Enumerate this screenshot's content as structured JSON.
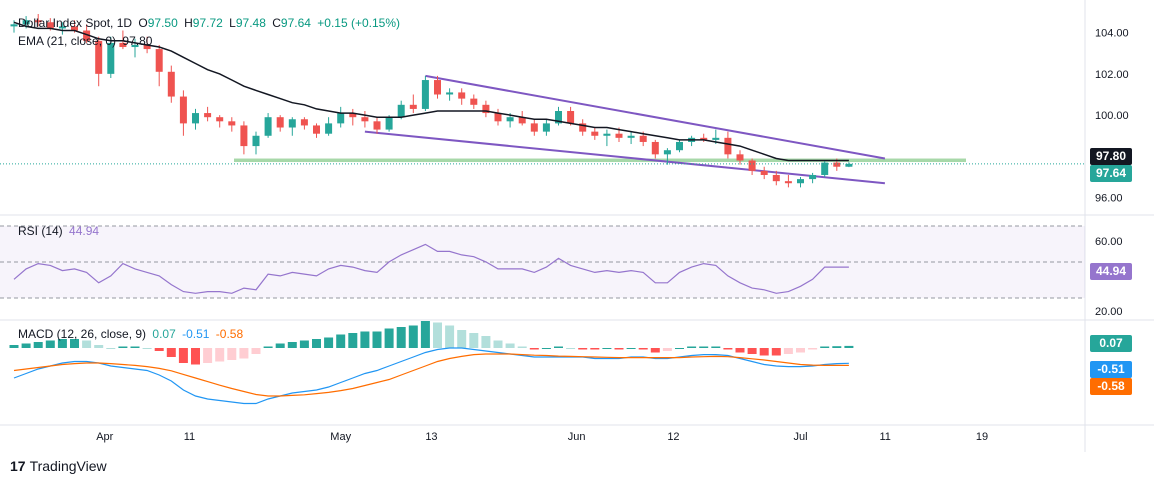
{
  "header": {
    "symbol": "Dollar Index Spot, 1D",
    "open_label": "O",
    "open": "97.50",
    "high_label": "H",
    "high": "97.72",
    "low_label": "L",
    "low": "97.48",
    "close_label": "C",
    "close": "97.64",
    "change": "+0.15 (+0.15%)"
  },
  "ema_legend": {
    "label": "EMA (21, close, 0)",
    "value": "97.80"
  },
  "rsi_legend": {
    "label": "RSI (14)",
    "value": "44.94"
  },
  "macd_legend": {
    "label": "MACD (12, 26, close, 9)",
    "hist": "0.07",
    "macd": "-0.51",
    "signal": "-0.58"
  },
  "badges": {
    "ema": "97.80",
    "price": "97.64",
    "rsi": "44.94",
    "macd_hist": "0.07",
    "macd_line": "-0.51",
    "macd_signal": "-0.58"
  },
  "colors": {
    "up": "#26a69a",
    "down": "#ef5350",
    "ema": "#131722",
    "channel": "#7e57c2",
    "support": "#81c784",
    "rsi": "#9575cd",
    "macd": "#2196f3",
    "signal": "#ff6d00",
    "hist_up_strong": "#26a69a",
    "hist_up_weak": "#b2dfdb",
    "hist_down_strong": "#ff5252",
    "hist_down_weak": "#ffcdd2"
  },
  "footer": {
    "brand": "TradingView"
  },
  "chart_data": {
    "type": "candlestick",
    "x_tick_labels": [
      "Apr",
      "11",
      "May",
      "13",
      "Jun",
      "12",
      "Jul",
      "11",
      "19"
    ],
    "price_axis": {
      "ticks": [
        "104.00",
        "102.00",
        "100.00",
        "96.00"
      ],
      "range": [
        95.5,
        104.9
      ]
    },
    "rsi_axis": {
      "ticks": [
        "60.00",
        "40.00",
        "20.00"
      ],
      "range": [
        17,
        72
      ],
      "bands": [
        30,
        50,
        70
      ]
    },
    "support_level": 97.8,
    "candles": [
      [
        104.3,
        104.6,
        104.0,
        104.4
      ],
      [
        104.4,
        104.8,
        104.2,
        104.6
      ],
      [
        104.6,
        104.9,
        104.3,
        104.5
      ],
      [
        104.5,
        104.7,
        104.1,
        104.2
      ],
      [
        104.2,
        104.5,
        103.9,
        104.3
      ],
      [
        104.3,
        104.6,
        104.0,
        104.1
      ],
      [
        104.1,
        104.4,
        103.5,
        103.6
      ],
      [
        103.6,
        103.8,
        101.4,
        102.0
      ],
      [
        102.0,
        103.8,
        101.8,
        103.5
      ],
      [
        103.5,
        104.1,
        103.2,
        103.3
      ],
      [
        103.3,
        103.7,
        102.8,
        103.4
      ],
      [
        103.4,
        103.8,
        103.0,
        103.2
      ],
      [
        103.2,
        103.4,
        101.4,
        102.1
      ],
      [
        102.1,
        102.4,
        100.6,
        100.9
      ],
      [
        100.9,
        101.2,
        99.0,
        99.6
      ],
      [
        99.6,
        100.3,
        99.3,
        100.1
      ],
      [
        100.1,
        100.4,
        99.7,
        99.9
      ],
      [
        99.9,
        100.0,
        99.4,
        99.7
      ],
      [
        99.7,
        99.9,
        99.2,
        99.5
      ],
      [
        99.5,
        99.7,
        98.1,
        98.5
      ],
      [
        98.5,
        99.2,
        98.1,
        99.0
      ],
      [
        99.0,
        100.1,
        98.9,
        99.9
      ],
      [
        99.9,
        100.0,
        99.2,
        99.4
      ],
      [
        99.4,
        99.9,
        99.0,
        99.8
      ],
      [
        99.8,
        99.9,
        99.3,
        99.5
      ],
      [
        99.5,
        99.6,
        98.9,
        99.1
      ],
      [
        99.1,
        99.9,
        99.0,
        99.6
      ],
      [
        99.6,
        100.4,
        99.4,
        100.1
      ],
      [
        100.1,
        100.3,
        99.5,
        99.9
      ],
      [
        99.9,
        100.2,
        99.4,
        99.7
      ],
      [
        99.7,
        99.9,
        99.1,
        99.3
      ],
      [
        99.3,
        100.0,
        99.2,
        99.9
      ],
      [
        99.9,
        100.7,
        99.8,
        100.5
      ],
      [
        100.5,
        101.0,
        100.1,
        100.3
      ],
      [
        100.3,
        101.9,
        100.2,
        101.7
      ],
      [
        101.7,
        101.9,
        100.8,
        101.0
      ],
      [
        101.0,
        101.3,
        100.7,
        101.1
      ],
      [
        101.1,
        101.3,
        100.5,
        100.8
      ],
      [
        100.8,
        101.0,
        100.3,
        100.5
      ],
      [
        100.5,
        100.7,
        99.9,
        100.1
      ],
      [
        100.1,
        100.3,
        99.5,
        99.7
      ],
      [
        99.7,
        100.1,
        99.4,
        99.9
      ],
      [
        99.9,
        100.2,
        99.5,
        99.6
      ],
      [
        99.6,
        99.8,
        99.0,
        99.2
      ],
      [
        99.2,
        99.8,
        99.0,
        99.6
      ],
      [
        99.6,
        100.4,
        99.5,
        100.2
      ],
      [
        100.2,
        100.4,
        99.5,
        99.6
      ],
      [
        99.6,
        99.8,
        99.0,
        99.2
      ],
      [
        99.2,
        99.4,
        98.8,
        99.0
      ],
      [
        99.0,
        99.3,
        98.5,
        99.1
      ],
      [
        99.1,
        99.4,
        98.7,
        98.9
      ],
      [
        98.9,
        99.2,
        98.6,
        99.0
      ],
      [
        99.0,
        99.2,
        98.5,
        98.7
      ],
      [
        98.7,
        98.8,
        97.9,
        98.1
      ],
      [
        98.1,
        98.4,
        97.6,
        98.3
      ],
      [
        98.3,
        98.8,
        98.2,
        98.7
      ],
      [
        98.7,
        99.0,
        98.5,
        98.9
      ],
      [
        98.9,
        99.1,
        98.7,
        98.8
      ],
      [
        98.8,
        99.3,
        98.6,
        98.9
      ],
      [
        98.9,
        99.2,
        97.9,
        98.1
      ],
      [
        98.1,
        98.3,
        97.6,
        97.8
      ],
      [
        97.8,
        97.9,
        97.1,
        97.3
      ],
      [
        97.3,
        97.5,
        96.9,
        97.1
      ],
      [
        97.1,
        97.3,
        96.6,
        96.8
      ],
      [
        96.8,
        97.1,
        96.5,
        96.7
      ],
      [
        96.7,
        97.0,
        96.5,
        96.9
      ],
      [
        96.9,
        97.2,
        96.7,
        97.1
      ],
      [
        97.1,
        97.8,
        97.0,
        97.7
      ],
      [
        97.7,
        97.9,
        97.3,
        97.5
      ],
      [
        97.5,
        97.72,
        97.48,
        97.64
      ]
    ],
    "ema21": [
      104.5,
      104.3,
      104.2,
      104.2,
      104.1,
      104.1,
      103.9,
      103.7,
      103.6,
      103.6,
      103.5,
      103.4,
      103.3,
      103.1,
      102.8,
      102.5,
      102.2,
      102.0,
      101.7,
      101.4,
      101.2,
      101.0,
      100.8,
      100.6,
      100.5,
      100.3,
      100.2,
      100.1,
      100.1,
      100.0,
      99.9,
      99.9,
      99.9,
      100.0,
      100.1,
      100.2,
      100.2,
      100.2,
      100.2,
      100.2,
      100.1,
      100.0,
      99.9,
      99.8,
      99.8,
      99.7,
      99.6,
      99.5,
      99.4,
      99.4,
      99.3,
      99.2,
      99.1,
      99.0,
      98.9,
      98.8,
      98.8,
      98.8,
      98.7,
      98.6,
      98.5,
      98.3,
      98.1,
      97.9,
      97.8,
      97.8,
      97.8,
      97.8,
      97.8,
      97.8
    ],
    "rsi": [
      38,
      44,
      47,
      46,
      43,
      44,
      42,
      36,
      40,
      47,
      44,
      42,
      40,
      35,
      31,
      30,
      31,
      31,
      30,
      33,
      32,
      41,
      40,
      42,
      41,
      40,
      44,
      46,
      45,
      43,
      42,
      48,
      52,
      55,
      58,
      54,
      54,
      52,
      51,
      48,
      44,
      44,
      44,
      42,
      45,
      50,
      46,
      44,
      42,
      43,
      42,
      43,
      42,
      36,
      36,
      42,
      45,
      47,
      46,
      40,
      36,
      33,
      32,
      30,
      31,
      34,
      38,
      45,
      45,
      45
    ],
    "macd_hist": [
      0.1,
      0.15,
      0.2,
      0.25,
      0.3,
      0.3,
      0.25,
      0.1,
      0.0,
      0.05,
      0.05,
      0.0,
      -0.1,
      -0.3,
      -0.5,
      -0.55,
      -0.5,
      -0.45,
      -0.4,
      -0.35,
      -0.2,
      0.05,
      0.15,
      0.2,
      0.25,
      0.3,
      0.35,
      0.45,
      0.5,
      0.55,
      0.55,
      0.65,
      0.7,
      0.75,
      0.9,
      0.85,
      0.75,
      0.6,
      0.5,
      0.4,
      0.25,
      0.15,
      0.05,
      -0.05,
      0.0,
      0.05,
      0.0,
      -0.05,
      -0.05,
      0.0,
      -0.05,
      0.0,
      -0.05,
      -0.15,
      -0.1,
      0.0,
      0.05,
      0.05,
      0.05,
      -0.05,
      -0.15,
      -0.2,
      -0.25,
      -0.25,
      -0.2,
      -0.15,
      -0.05,
      0.05,
      0.06,
      0.07
    ],
    "macd_line": [
      -1.0,
      -0.85,
      -0.7,
      -0.6,
      -0.5,
      -0.45,
      -0.45,
      -0.5,
      -0.6,
      -0.65,
      -0.7,
      -0.75,
      -0.9,
      -1.1,
      -1.4,
      -1.6,
      -1.7,
      -1.75,
      -1.8,
      -1.85,
      -1.85,
      -1.7,
      -1.6,
      -1.5,
      -1.45,
      -1.4,
      -1.3,
      -1.15,
      -1.0,
      -0.85,
      -0.75,
      -0.6,
      -0.45,
      -0.3,
      -0.15,
      -0.05,
      0.0,
      0.0,
      -0.05,
      -0.1,
      -0.15,
      -0.2,
      -0.25,
      -0.3,
      -0.3,
      -0.3,
      -0.3,
      -0.3,
      -0.35,
      -0.35,
      -0.35,
      -0.3,
      -0.3,
      -0.35,
      -0.35,
      -0.3,
      -0.25,
      -0.22,
      -0.22,
      -0.25,
      -0.35,
      -0.45,
      -0.55,
      -0.6,
      -0.62,
      -0.62,
      -0.6,
      -0.55,
      -0.52,
      -0.51
    ],
    "macd_signal": [
      -0.75,
      -0.7,
      -0.65,
      -0.6,
      -0.55,
      -0.52,
      -0.5,
      -0.5,
      -0.52,
      -0.55,
      -0.58,
      -0.62,
      -0.68,
      -0.76,
      -0.88,
      -1.0,
      -1.12,
      -1.24,
      -1.35,
      -1.45,
      -1.55,
      -1.6,
      -1.6,
      -1.58,
      -1.56,
      -1.52,
      -1.48,
      -1.42,
      -1.35,
      -1.25,
      -1.15,
      -1.05,
      -0.9,
      -0.75,
      -0.6,
      -0.45,
      -0.35,
      -0.28,
      -0.22,
      -0.2,
      -0.2,
      -0.2,
      -0.22,
      -0.24,
      -0.25,
      -0.27,
      -0.28,
      -0.29,
      -0.3,
      -0.31,
      -0.32,
      -0.32,
      -0.32,
      -0.32,
      -0.32,
      -0.32,
      -0.3,
      -0.29,
      -0.28,
      -0.29,
      -0.32,
      -0.36,
      -0.4,
      -0.45,
      -0.5,
      -0.55,
      -0.57,
      -0.58,
      -0.58,
      -0.58
    ],
    "falling_channel": {
      "upper": [
        [
          34,
          101.9
        ],
        [
          69,
          97.9
        ]
      ],
      "lower": [
        [
          29,
          99.2
        ],
        [
          69,
          96.7
        ]
      ]
    }
  }
}
